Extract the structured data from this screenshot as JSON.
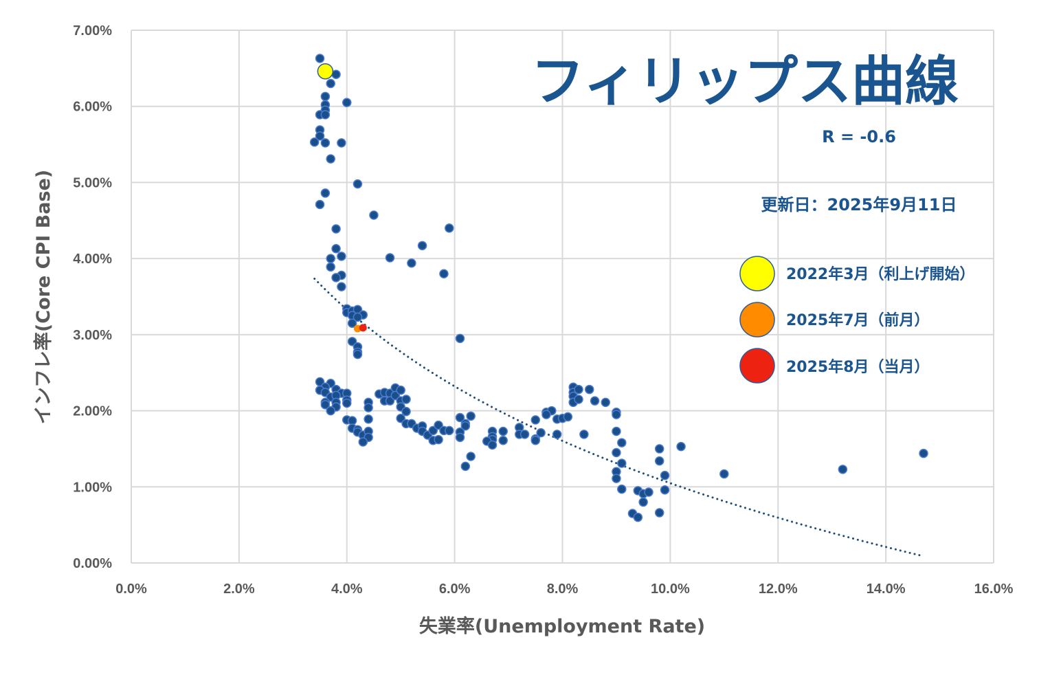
{
  "chart_data": {
    "type": "scatter",
    "title": "フィリップス曲線",
    "xlabel": "失業率(Unemployment Rate)",
    "ylabel": "インフレ率(Core CPI Base)",
    "xlim": [
      0,
      16
    ],
    "ylim": [
      0,
      7
    ],
    "x_ticks": [
      "0.0%",
      "2.0%",
      "4.0%",
      "6.0%",
      "8.0%",
      "10.0%",
      "12.0%",
      "14.0%",
      "16.0%"
    ],
    "y_ticks": [
      "0.00%",
      "1.00%",
      "2.00%",
      "3.00%",
      "4.00%",
      "5.00%",
      "6.00%",
      "7.00%"
    ],
    "grid": true,
    "annotations": {
      "correlation": "R = -0.6",
      "updated": "更新日：2025年9月11日"
    },
    "trendline": {
      "type": "logarithmic",
      "style": "dotted",
      "color": "#1f4e79"
    },
    "colors": {
      "points": "#1a4f8a",
      "point_edge": "#4a7bd0",
      "grid": "#d9d9d9"
    },
    "highlights": [
      {
        "label": "2022年3月（利上げ開始）",
        "color": "#ffff00",
        "x": 3.6,
        "y": 6.46
      },
      {
        "label": "2025年7月（前月）",
        "color": "#ff8c00",
        "x": 4.2,
        "y": 3.08
      },
      {
        "label": "2025年8月（当月）",
        "color": "#ee2211",
        "x": 4.3,
        "y": 3.09
      }
    ],
    "points": [
      [
        3.5,
        6.63
      ],
      [
        3.8,
        6.42
      ],
      [
        3.7,
        6.3
      ],
      [
        3.6,
        6.13
      ],
      [
        3.6,
        6.02
      ],
      [
        3.6,
        5.95
      ],
      [
        3.5,
        5.89
      ],
      [
        3.6,
        5.89
      ],
      [
        4.0,
        6.05
      ],
      [
        3.5,
        5.69
      ],
      [
        3.5,
        5.61
      ],
      [
        3.4,
        5.53
      ],
      [
        3.6,
        5.52
      ],
      [
        3.9,
        5.52
      ],
      [
        3.7,
        5.31
      ],
      [
        4.2,
        4.98
      ],
      [
        3.6,
        4.86
      ],
      [
        3.5,
        4.71
      ],
      [
        4.5,
        4.57
      ],
      [
        5.9,
        4.4
      ],
      [
        3.8,
        4.39
      ],
      [
        5.4,
        4.17
      ],
      [
        3.8,
        4.13
      ],
      [
        4.8,
        4.01
      ],
      [
        3.7,
        4.0
      ],
      [
        3.9,
        4.03
      ],
      [
        5.2,
        3.94
      ],
      [
        3.7,
        3.89
      ],
      [
        5.8,
        3.8
      ],
      [
        3.9,
        3.78
      ],
      [
        3.8,
        3.75
      ],
      [
        3.9,
        3.63
      ],
      [
        4.0,
        3.34
      ],
      [
        4.0,
        3.29
      ],
      [
        4.1,
        3.31
      ],
      [
        4.2,
        3.33
      ],
      [
        4.3,
        3.26
      ],
      [
        4.1,
        3.25
      ],
      [
        4.2,
        3.23
      ],
      [
        4.1,
        3.15
      ],
      [
        6.1,
        2.95
      ],
      [
        4.1,
        2.91
      ],
      [
        4.2,
        2.84
      ],
      [
        4.2,
        2.77
      ],
      [
        4.2,
        2.74
      ],
      [
        3.5,
        2.38
      ],
      [
        3.7,
        2.36
      ],
      [
        3.6,
        2.31
      ],
      [
        3.5,
        2.27
      ],
      [
        3.8,
        2.28
      ],
      [
        3.6,
        2.24
      ],
      [
        3.9,
        2.23
      ],
      [
        4.0,
        2.23
      ],
      [
        3.7,
        2.18
      ],
      [
        3.8,
        2.2
      ],
      [
        4.0,
        2.14
      ],
      [
        3.6,
        2.11
      ],
      [
        3.8,
        2.11
      ],
      [
        3.6,
        2.08
      ],
      [
        3.8,
        2.05
      ],
      [
        4.0,
        2.1
      ],
      [
        3.7,
        2.0
      ],
      [
        4.4,
        2.11
      ],
      [
        4.4,
        2.04
      ],
      [
        4.4,
        1.89
      ],
      [
        4.0,
        1.88
      ],
      [
        4.1,
        1.87
      ],
      [
        4.1,
        1.77
      ],
      [
        4.2,
        1.75
      ],
      [
        4.2,
        1.72
      ],
      [
        4.3,
        1.68
      ],
      [
        4.4,
        1.73
      ],
      [
        4.4,
        1.65
      ],
      [
        4.3,
        1.59
      ],
      [
        4.6,
        2.22
      ],
      [
        4.7,
        2.24
      ],
      [
        4.7,
        2.13
      ],
      [
        4.8,
        2.23
      ],
      [
        4.8,
        2.13
      ],
      [
        4.9,
        2.3
      ],
      [
        4.9,
        2.2
      ],
      [
        5.0,
        2.27
      ],
      [
        5.0,
        2.13
      ],
      [
        5.0,
        2.05
      ],
      [
        5.1,
        2.15
      ],
      [
        5.1,
        1.99
      ],
      [
        5.0,
        1.9
      ],
      [
        5.1,
        1.83
      ],
      [
        5.2,
        1.83
      ],
      [
        5.3,
        1.77
      ],
      [
        5.4,
        1.8
      ],
      [
        5.4,
        1.73
      ],
      [
        5.5,
        1.68
      ],
      [
        5.6,
        1.74
      ],
      [
        5.6,
        1.61
      ],
      [
        5.7,
        1.81
      ],
      [
        5.7,
        1.62
      ],
      [
        5.8,
        1.74
      ],
      [
        5.9,
        1.74
      ],
      [
        6.1,
        1.91
      ],
      [
        6.3,
        1.93
      ],
      [
        6.2,
        1.83
      ],
      [
        6.2,
        1.8
      ],
      [
        6.1,
        1.72
      ],
      [
        6.1,
        1.65
      ],
      [
        6.3,
        1.4
      ],
      [
        6.2,
        1.27
      ],
      [
        6.7,
        1.73
      ],
      [
        6.7,
        1.66
      ],
      [
        6.7,
        1.62
      ],
      [
        6.6,
        1.6
      ],
      [
        6.7,
        1.55
      ],
      [
        6.9,
        1.73
      ],
      [
        6.9,
        1.61
      ],
      [
        7.2,
        1.78
      ],
      [
        7.2,
        1.69
      ],
      [
        7.3,
        1.69
      ],
      [
        7.5,
        1.88
      ],
      [
        7.5,
        1.63
      ],
      [
        7.5,
        1.61
      ],
      [
        7.6,
        1.71
      ],
      [
        7.7,
        1.98
      ],
      [
        7.8,
        2.0
      ],
      [
        7.7,
        1.95
      ],
      [
        7.9,
        1.89
      ],
      [
        7.9,
        1.69
      ],
      [
        8.0,
        1.9
      ],
      [
        8.1,
        1.92
      ],
      [
        8.2,
        2.31
      ],
      [
        8.2,
        2.24
      ],
      [
        8.2,
        2.19
      ],
      [
        8.2,
        2.11
      ],
      [
        8.3,
        2.28
      ],
      [
        8.3,
        2.15
      ],
      [
        8.5,
        2.28
      ],
      [
        8.6,
        2.13
      ],
      [
        8.8,
        2.11
      ],
      [
        8.4,
        1.69
      ],
      [
        9.0,
        1.98
      ],
      [
        9.0,
        1.95
      ],
      [
        9.0,
        1.73
      ],
      [
        9.1,
        1.58
      ],
      [
        9.0,
        1.45
      ],
      [
        9.1,
        1.31
      ],
      [
        9.0,
        1.2
      ],
      [
        9.0,
        1.11
      ],
      [
        9.1,
        0.97
      ],
      [
        9.4,
        0.95
      ],
      [
        9.5,
        0.91
      ],
      [
        9.6,
        0.93
      ],
      [
        9.5,
        0.8
      ],
      [
        9.3,
        0.65
      ],
      [
        9.4,
        0.6
      ],
      [
        9.8,
        1.5
      ],
      [
        9.8,
        1.34
      ],
      [
        9.9,
        1.15
      ],
      [
        9.9,
        0.96
      ],
      [
        9.8,
        0.66
      ],
      [
        10.2,
        1.53
      ],
      [
        11.0,
        1.17
      ],
      [
        13.2,
        1.23
      ],
      [
        14.7,
        1.44
      ]
    ]
  }
}
